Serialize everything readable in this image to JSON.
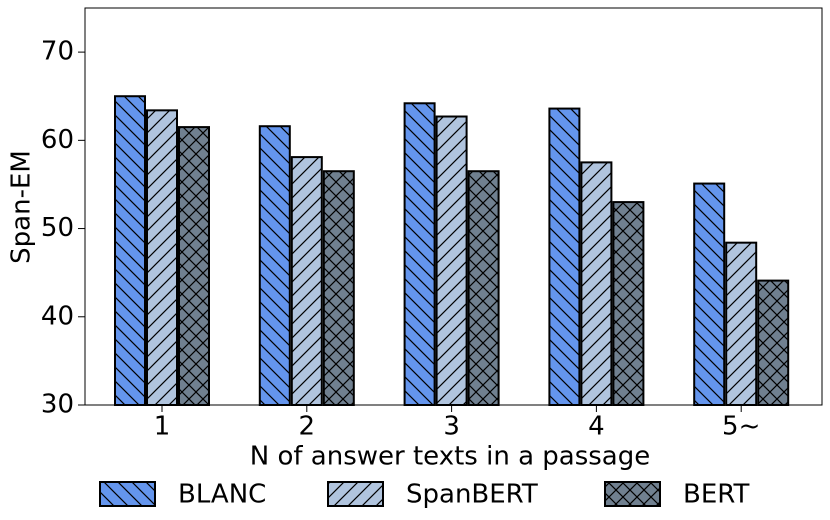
{
  "chart_data": {
    "type": "bar",
    "xlabel": "N of answer texts in a passage",
    "ylabel": "Span-EM",
    "categories": [
      "1",
      "2",
      "3",
      "4",
      "5~"
    ],
    "series": [
      {
        "name": "BLANC",
        "color": "#6495ed",
        "hatch": "\\",
        "values": [
          65,
          61.6,
          64.2,
          63.6,
          55.1
        ]
      },
      {
        "name": "SpanBERT",
        "color": "#b0c4de",
        "hatch": "/",
        "values": [
          63.4,
          58.1,
          62.7,
          57.5,
          48.4
        ]
      },
      {
        "name": "BERT",
        "color": "#708090",
        "hatch": "x",
        "values": [
          61.5,
          56.5,
          56.5,
          53,
          44.1
        ]
      }
    ],
    "ylim": [
      30,
      75
    ],
    "yticks": [
      30,
      40,
      50,
      60,
      70
    ],
    "grid": false,
    "legend": "bottom"
  }
}
